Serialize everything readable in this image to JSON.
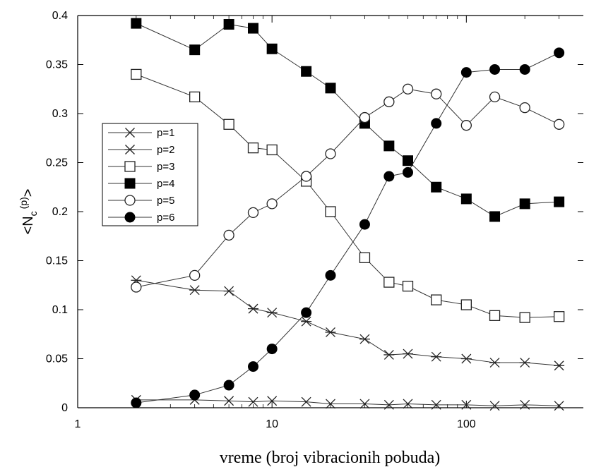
{
  "chart_data": {
    "type": "line",
    "xscale": "log",
    "xlim": [
      1,
      400
    ],
    "ylim": [
      0,
      0.4
    ],
    "xticks": [
      1,
      10,
      100
    ],
    "xtick_labels": [
      "1",
      "10",
      "100"
    ],
    "yticks": [
      0,
      0.05,
      0.1,
      0.15,
      0.2,
      0.25,
      0.3,
      0.35,
      0.4
    ],
    "ytick_labels": [
      "0",
      "0.05",
      "0.1",
      "0.15",
      "0.2",
      "0.25",
      "0.3",
      "0.35",
      "0.4"
    ],
    "xlabel": "vreme (broj vibracionih pobuda)",
    "ylabel": "<N",
    "ylabel_sub": "c",
    "ylabel_sup": "(p)",
    "ylabel_end": ">",
    "grid": false,
    "legend_position": "upper-left",
    "x": [
      2,
      4,
      6,
      8,
      10,
      15,
      20,
      30,
      40,
      50,
      70,
      100,
      140,
      200,
      300
    ],
    "series": [
      {
        "name": "p=1",
        "marker": "x",
        "values": [
          0.008,
          0.008,
          0.007,
          0.006,
          0.007,
          0.006,
          0.004,
          0.004,
          0.003,
          0.004,
          0.003,
          0.003,
          0.002,
          0.003,
          0.002
        ]
      },
      {
        "name": "p=2",
        "marker": "star",
        "values": [
          0.13,
          0.12,
          0.119,
          0.101,
          0.097,
          0.088,
          0.077,
          0.07,
          0.054,
          0.055,
          0.052,
          0.05,
          0.046,
          0.046,
          0.043
        ]
      },
      {
        "name": "p=3",
        "marker": "open-square",
        "values": [
          0.34,
          0.317,
          0.289,
          0.265,
          0.263,
          0.231,
          0.2,
          0.153,
          0.128,
          0.124,
          0.11,
          0.105,
          0.094,
          0.092,
          0.093
        ]
      },
      {
        "name": "p=4",
        "marker": "filled-square",
        "values": [
          0.392,
          0.365,
          0.391,
          0.387,
          0.366,
          0.343,
          0.326,
          0.29,
          0.267,
          0.252,
          0.225,
          0.213,
          0.195,
          0.208,
          0.21
        ]
      },
      {
        "name": "p=5",
        "marker": "open-circle",
        "values": [
          0.123,
          0.135,
          0.176,
          0.199,
          0.208,
          0.236,
          0.259,
          0.296,
          0.312,
          0.325,
          0.32,
          0.288,
          0.317,
          0.306,
          0.289
        ]
      },
      {
        "name": "p=6",
        "marker": "filled-circle",
        "values": [
          0.005,
          0.013,
          0.023,
          0.042,
          0.06,
          0.097,
          0.135,
          0.187,
          0.236,
          0.24,
          0.29,
          0.342,
          0.345,
          0.345,
          0.362
        ]
      }
    ]
  }
}
